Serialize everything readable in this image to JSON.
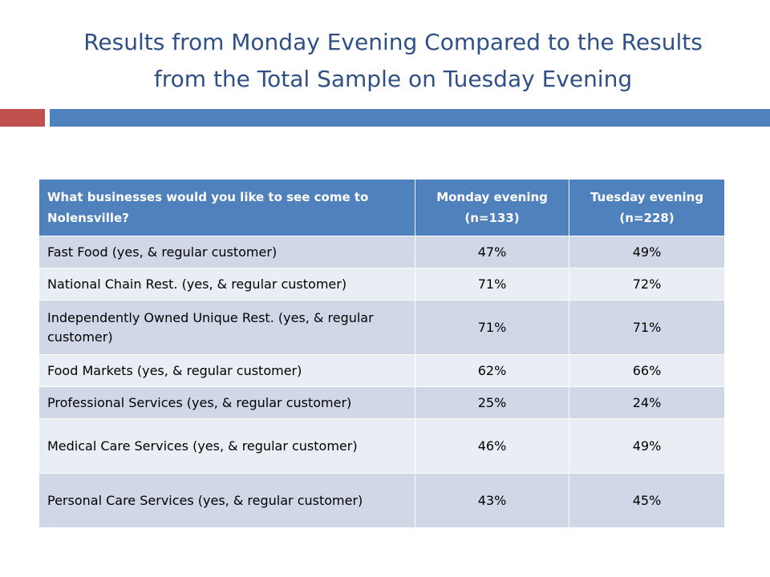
{
  "title": {
    "line1": "Results from Monday Evening Compared to the Results",
    "line2": "from the Total Sample on Tuesday Evening"
  },
  "accent_colors": {
    "title": "#2f4f87",
    "bar_red": "#c0504d",
    "bar_blue": "#4f81bd",
    "row_dark": "#d0d8e8",
    "row_light": "#e9edf4"
  },
  "table": {
    "headers": [
      "What businesses would you like to see come to Nolensville?",
      "Monday evening (n=133)",
      "Tuesday evening (n=228)"
    ],
    "rows": [
      [
        "Fast Food (yes, & regular customer)",
        "47%",
        "49%"
      ],
      [
        "National Chain Rest. (yes, & regular customer)",
        "71%",
        "72%"
      ],
      [
        "Independently Owned Unique Rest. (yes, & regular customer)",
        "71%",
        "71%"
      ],
      [
        "Food Markets (yes, & regular customer)",
        "62%",
        "66%"
      ],
      [
        "Professional Services (yes, & regular customer)",
        "25%",
        "24%"
      ],
      [
        "Medical Care Services (yes, & regular customer)",
        "46%",
        "49%"
      ],
      [
        "Personal Care Services (yes, & regular customer)",
        "43%",
        "45%"
      ]
    ]
  }
}
